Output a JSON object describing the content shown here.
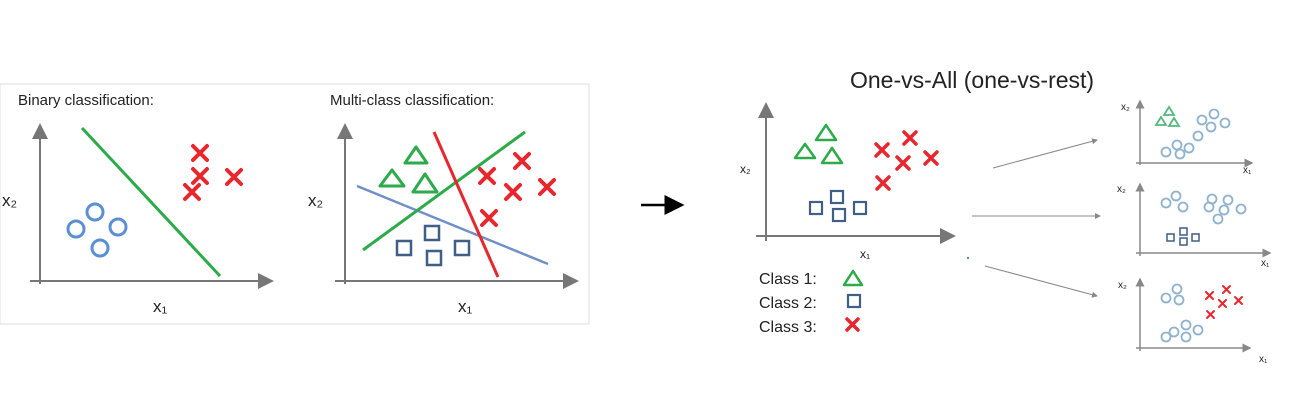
{
  "left_panel": {
    "binary": {
      "title": "Binary classification:",
      "xlabel": "x₁",
      "ylabel": "x₂"
    },
    "multiclass": {
      "title": "Multi-class classification:",
      "xlabel": "x₁",
      "ylabel": "x₂"
    }
  },
  "arrow": {
    "glyph": "→"
  },
  "right_panel": {
    "title": "One-vs-All (one-vs-rest)",
    "main_plot": {
      "xlabel": "x₁",
      "ylabel": "x₂"
    },
    "legend": [
      {
        "label": "Class 1:",
        "marker": "triangle-icon"
      },
      {
        "label": "Class 2:",
        "marker": "square-icon"
      },
      {
        "label": "Class 3:",
        "marker": "cross-icon"
      }
    ],
    "subplots": [
      {
        "xlabel": "x₁",
        "ylabel": "x₂"
      },
      {
        "xlabel": "x₁",
        "ylabel": "x₂"
      },
      {
        "xlabel": "x₁",
        "ylabel": "x₂"
      }
    ]
  },
  "colors": {
    "green": "#2daa4a",
    "red": "#e8262d",
    "blue_circle": "#5b8fd3",
    "square": "#3f5f86",
    "line_blue": "#6f8fc7",
    "axis": "#777777",
    "sub_blue": "#8fb2cf",
    "sub_green": "#58b77f"
  }
}
